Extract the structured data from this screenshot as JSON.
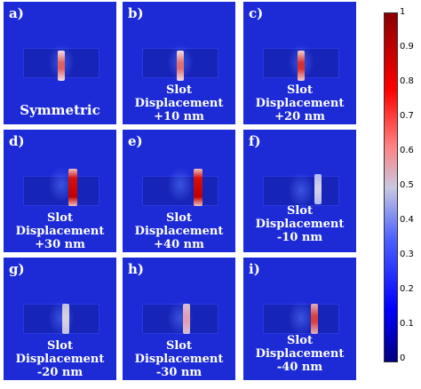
{
  "panels": [
    {
      "label": "a)",
      "caption": [
        "Symmetric"
      ]
    },
    {
      "label": "b)",
      "caption": [
        "Slot",
        "Displacement",
        "+10 nm"
      ]
    },
    {
      "label": "c)",
      "caption": [
        "Slot",
        "Displacement",
        "+20 nm"
      ]
    },
    {
      "label": "d)",
      "caption": [
        "Slot",
        "Displacement",
        "+30 nm"
      ]
    },
    {
      "label": "e)",
      "caption": [
        "Slot",
        "Displacement",
        "+40 nm"
      ]
    },
    {
      "label": "f)",
      "caption": [
        "Slot",
        "Displacement",
        "-10 nm"
      ]
    },
    {
      "label": "g)",
      "caption": [
        "Slot",
        "Displacement",
        "-20 nm"
      ]
    },
    {
      "label": "h)",
      "caption": [
        "Slot",
        "Displacement",
        "-30 nm"
      ]
    },
    {
      "label": "i)",
      "caption": [
        "Slot",
        "Displacement",
        "-40 nm"
      ]
    }
  ],
  "colorbar": {
    "ticks": [
      "1",
      "0.9",
      "0.8",
      "0.7",
      "0.6",
      "0.5",
      "0.4",
      "0.3",
      "0.2",
      "0.1",
      "0"
    ]
  },
  "colors": {
    "background": "#1d2bd6",
    "hot_high": "#d41010",
    "hot_mid": "#e06060",
    "hot_low": "#d0d0e8"
  }
}
